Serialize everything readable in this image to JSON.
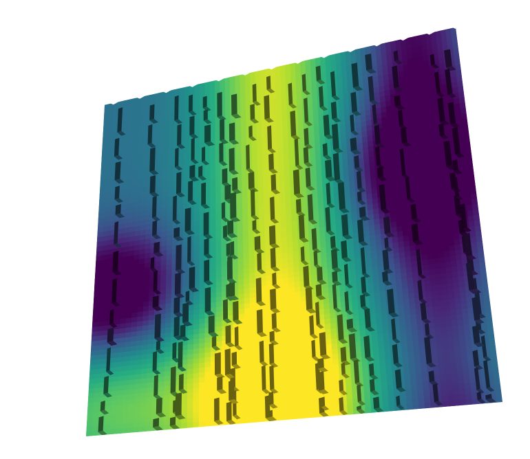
{
  "chart_data": {
    "type": "heatmap",
    "subtype": "3d-voxel-surface",
    "title": "",
    "xlabel": "",
    "ylabel": "",
    "zlabel": "",
    "colormap": "viridis",
    "colorbar": false,
    "axes_visible": false,
    "grid": false,
    "x_range": [
      0,
      1
    ],
    "y_range": [
      0,
      1
    ],
    "value_range": [
      0,
      1
    ],
    "field": {
      "components": [
        {
          "kind": "band",
          "axis": "x",
          "center": 0.47,
          "width": 0.13,
          "amplitude": 0.55
        },
        {
          "kind": "band",
          "axis": "x",
          "center": 0.88,
          "width": 0.09,
          "amplitude": -0.35
        },
        {
          "kind": "spot",
          "x": 0.05,
          "y": 0.58,
          "width": 0.12,
          "amplitude": -0.6
        },
        {
          "kind": "spot",
          "x": 0.86,
          "y": 0.34,
          "width": 0.12,
          "amplitude": -0.55
        },
        {
          "kind": "spot",
          "x": 0.44,
          "y": 0.93,
          "width": 0.16,
          "amplitude": 0.55
        },
        {
          "kind": "spot",
          "x": 0.05,
          "y": 0.93,
          "width": 0.16,
          "amplitude": 0.35
        },
        {
          "kind": "spot",
          "x": 0.93,
          "y": 0.86,
          "width": 0.14,
          "amplitude": 0.15
        }
      ],
      "baseline": 0.38
    },
    "terrace_columns": [
      0.04,
      0.13,
      0.2,
      0.24,
      0.28,
      0.32,
      0.36,
      0.42,
      0.46,
      0.52,
      0.56,
      0.6,
      0.64,
      0.7,
      0.74,
      0.82,
      0.92,
      0.96
    ]
  }
}
